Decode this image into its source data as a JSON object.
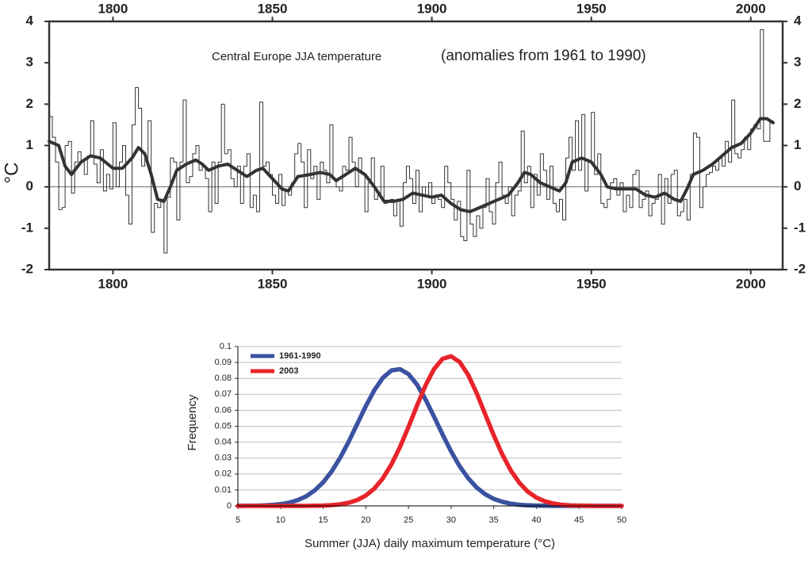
{
  "chart_data": [
    {
      "type": "line",
      "title": "Central Europe JJA temperature",
      "subtitle": "(anomalies from 1961 to 1990)",
      "y_label": "°C",
      "xlim": [
        1780,
        2010
      ],
      "xticks": [
        1800,
        1850,
        1900,
        1950,
        2000
      ],
      "ylim": [
        -2,
        4
      ],
      "yticks": [
        -2,
        -1,
        0,
        1,
        2,
        3,
        4
      ],
      "zero_line": true,
      "series": [
        {
          "color": "#333333",
          "step": true,
          "x": [
            1780,
            1781,
            1782,
            1783,
            1784,
            1785,
            1786,
            1787,
            1788,
            1789,
            1790,
            1791,
            1792,
            1793,
            1794,
            1795,
            1796,
            1797,
            1798,
            1799,
            1800,
            1801,
            1802,
            1803,
            1804,
            1805,
            1806,
            1807,
            1808,
            1809,
            1810,
            1811,
            1812,
            1813,
            1814,
            1815,
            1816,
            1817,
            1818,
            1819,
            1820,
            1821,
            1822,
            1823,
            1824,
            1825,
            1826,
            1827,
            1828,
            1829,
            1830,
            1831,
            1832,
            1833,
            1834,
            1835,
            1836,
            1837,
            1838,
            1839,
            1840,
            1841,
            1842,
            1843,
            1844,
            1845,
            1846,
            1847,
            1848,
            1849,
            1850,
            1851,
            1852,
            1853,
            1854,
            1855,
            1856,
            1857,
            1858,
            1859,
            1860,
            1861,
            1862,
            1863,
            1864,
            1865,
            1866,
            1867,
            1868,
            1869,
            1870,
            1871,
            1872,
            1873,
            1874,
            1875,
            1876,
            1877,
            1878,
            1879,
            1880,
            1881,
            1882,
            1883,
            1884,
            1885,
            1886,
            1887,
            1888,
            1889,
            1890,
            1891,
            1892,
            1893,
            1894,
            1895,
            1896,
            1897,
            1898,
            1899,
            1900,
            1901,
            1902,
            1903,
            1904,
            1905,
            1906,
            1907,
            1908,
            1909,
            1910,
            1911,
            1912,
            1913,
            1914,
            1915,
            1916,
            1917,
            1918,
            1919,
            1920,
            1921,
            1922,
            1923,
            1924,
            1925,
            1926,
            1927,
            1928,
            1929,
            1930,
            1931,
            1932,
            1933,
            1934,
            1935,
            1936,
            1937,
            1938,
            1939,
            1940,
            1941,
            1942,
            1943,
            1944,
            1945,
            1946,
            1947,
            1948,
            1949,
            1950,
            1951,
            1952,
            1953,
            1954,
            1955,
            1956,
            1957,
            1958,
            1959,
            1960,
            1961,
            1962,
            1963,
            1964,
            1965,
            1966,
            1967,
            1968,
            1969,
            1970,
            1971,
            1972,
            1973,
            1974,
            1975,
            1976,
            1977,
            1978,
            1979,
            1980,
            1981,
            1982,
            1983,
            1984,
            1985,
            1986,
            1987,
            1988,
            1989,
            1990,
            1991,
            1992,
            1993,
            1994,
            1995,
            1996,
            1997,
            1998,
            1999,
            2000,
            2001,
            2002,
            2003,
            2004,
            2005,
            2006
          ],
          "values": [
            1.7,
            1.2,
            0.6,
            -0.55,
            -0.5,
            1.0,
            1.1,
            -0.15,
            0.6,
            0.85,
            0.6,
            0.3,
            0.75,
            1.6,
            0.55,
            0.1,
            0.9,
            -0.1,
            0.3,
            -0.05,
            1.55,
            0.0,
            0.6,
            1.0,
            -0.2,
            -0.9,
            1.5,
            2.4,
            1.9,
            0.5,
            0.7,
            1.6,
            -1.1,
            -0.4,
            -0.5,
            -0.3,
            -1.6,
            -0.25,
            0.7,
            0.6,
            -0.8,
            0.6,
            2.1,
            0.1,
            0.25,
            0.8,
            1.0,
            0.4,
            0.5,
            0.2,
            -0.6,
            0.6,
            -0.4,
            0.6,
            2.0,
            0.8,
            0.9,
            0.2,
            0.0,
            0.5,
            -0.4,
            0.5,
            0.8,
            -0.5,
            -0.2,
            -0.6,
            2.05,
            0.5,
            0.6,
            0.3,
            -0.2,
            -0.4,
            0.3,
            -0.45,
            -0.1,
            -0.2,
            0.1,
            0.8,
            1.05,
            0.6,
            -0.5,
            0.9,
            0.2,
            0.5,
            -0.3,
            0.6,
            0.4,
            0.1,
            1.5,
            0.2,
            0.0,
            -0.1,
            0.5,
            0.4,
            1.2,
            0.6,
            0.0,
            0.7,
            0.3,
            -0.6,
            0.1,
            0.7,
            -0.3,
            -0.2,
            0.5,
            -0.4,
            -0.35,
            -0.3,
            -0.7,
            -0.3,
            -0.95,
            0.1,
            0.5,
            0.2,
            -0.4,
            0.4,
            -0.6,
            0.0,
            -0.2,
            0.1,
            -0.4,
            -0.2,
            -0.3,
            -0.5,
            0.5,
            0.1,
            -0.3,
            -0.8,
            -0.35,
            -1.2,
            -1.3,
            0.4,
            -0.9,
            -1.2,
            -0.7,
            -1.0,
            -0.5,
            0.2,
            -0.6,
            -0.9,
            0.1,
            0.6,
            -0.2,
            -0.4,
            0.0,
            -0.7,
            -0.2,
            -0.1,
            1.35,
            0.1,
            0.5,
            -0.5,
            0.3,
            -0.2,
            0.8,
            0.4,
            -0.3,
            0.5,
            -0.4,
            -0.6,
            -0.3,
            -0.8,
            0.7,
            1.2,
            0.4,
            1.6,
            0.4,
            1.75,
            -0.1,
            0.6,
            1.8,
            0.3,
            0.8,
            -0.4,
            -0.5,
            -0.3,
            0.1,
            0.2,
            -0.2,
            0.1,
            -0.6,
            -0.2,
            -0.5,
            0.3,
            0.4,
            -0.5,
            -0.3,
            -0.1,
            -0.7,
            -0.4,
            -0.3,
            0.3,
            -0.9,
            0.2,
            -0.4,
            0.3,
            0.4,
            -0.7,
            -0.6,
            -0.3,
            -0.8,
            0.3,
            1.3,
            1.2,
            -0.5,
            0.0,
            0.3,
            0.35,
            0.5,
            0.4,
            0.7,
            0.5,
            1.1,
            0.6,
            2.1,
            0.8,
            0.7,
            0.9,
            1.2,
            0.9,
            1.4,
            1.5,
            1.4,
            3.8,
            1.1,
            1.1,
            1.6
          ]
        },
        {
          "color": "#333333",
          "x": [
            1780,
            1783,
            1785,
            1787,
            1790,
            1793,
            1796,
            1800,
            1803,
            1806,
            1808,
            1810,
            1812,
            1814,
            1816,
            1818,
            1820,
            1823,
            1826,
            1828,
            1830,
            1833,
            1836,
            1839,
            1842,
            1845,
            1847,
            1850,
            1853,
            1855,
            1858,
            1862,
            1865,
            1868,
            1870,
            1873,
            1876,
            1879,
            1882,
            1885,
            1888,
            1891,
            1894,
            1897,
            1900,
            1903,
            1906,
            1909,
            1912,
            1915,
            1918,
            1921,
            1924,
            1927,
            1929,
            1931,
            1934,
            1937,
            1940,
            1942,
            1944,
            1947,
            1950,
            1953,
            1955,
            1958,
            1961,
            1964,
            1967,
            1970,
            1973,
            1976,
            1978,
            1980,
            1982,
            1985,
            1988,
            1991,
            1994,
            1997,
            2000,
            2003,
            2005,
            2007
          ],
          "values": [
            1.1,
            1.0,
            0.5,
            0.3,
            0.6,
            0.75,
            0.7,
            0.45,
            0.45,
            0.7,
            0.95,
            0.8,
            0.3,
            -0.3,
            -0.35,
            0.0,
            0.4,
            0.55,
            0.65,
            0.55,
            0.4,
            0.5,
            0.55,
            0.4,
            0.25,
            0.4,
            0.45,
            0.2,
            -0.05,
            -0.1,
            0.25,
            0.3,
            0.35,
            0.3,
            0.15,
            0.3,
            0.45,
            0.3,
            0.0,
            -0.35,
            -0.35,
            -0.3,
            -0.15,
            -0.2,
            -0.25,
            -0.2,
            -0.4,
            -0.55,
            -0.6,
            -0.5,
            -0.4,
            -0.3,
            -0.2,
            0.1,
            0.35,
            0.3,
            0.1,
            0.0,
            -0.1,
            0.1,
            0.6,
            0.7,
            0.6,
            0.3,
            0.0,
            -0.05,
            -0.05,
            -0.05,
            -0.2,
            -0.25,
            -0.15,
            -0.3,
            -0.35,
            -0.05,
            0.3,
            0.4,
            0.55,
            0.75,
            0.95,
            1.05,
            1.3,
            1.65,
            1.65,
            1.55
          ]
        }
      ]
    },
    {
      "type": "line",
      "x_label": "Summer (JJA) daily maximum temperature (°C)",
      "y_label": "Frequency",
      "xlim": [
        5,
        50
      ],
      "xticks": [
        5,
        10,
        15,
        20,
        25,
        30,
        35,
        40,
        45,
        50
      ],
      "ylim": [
        0,
        0.1
      ],
      "yticks": [
        0,
        0.01,
        0.02,
        0.03,
        0.04,
        0.05,
        0.06,
        0.07,
        0.08,
        0.09,
        0.1
      ],
      "grid": true,
      "legend": "upper left",
      "x": [
        5,
        6,
        7,
        8,
        9,
        10,
        11,
        12,
        13,
        14,
        15,
        16,
        17,
        18,
        19,
        20,
        21,
        22,
        23,
        24,
        25,
        26,
        27,
        28,
        29,
        30,
        31,
        32,
        33,
        34,
        35,
        36,
        37,
        38,
        39,
        40,
        41,
        42,
        43,
        44,
        45,
        46,
        47,
        48,
        49,
        50
      ],
      "series": [
        {
          "name": "1961-1990",
          "color": "#3a52a0",
          "values": [
            0,
            0.0001,
            0.0001,
            0.0003,
            0.0006,
            0.0011,
            0.002,
            0.0036,
            0.006,
            0.0097,
            0.0148,
            0.0217,
            0.0303,
            0.0404,
            0.0515,
            0.0626,
            0.0726,
            0.0804,
            0.085,
            0.0858,
            0.0827,
            0.0761,
            0.0668,
            0.056,
            0.0448,
            0.0342,
            0.0249,
            0.0174,
            0.0115,
            0.0073,
            0.0044,
            0.0026,
            0.0014,
            0.0007,
            0.0004,
            0.0002,
            0.0001,
            0,
            0,
            0,
            0,
            0,
            0,
            0,
            0,
            0
          ]
        },
        {
          "name": "2003",
          "color": "#e8242b",
          "values": [
            0,
            0,
            0,
            0,
            0,
            0,
            0,
            0,
            0,
            0.0001,
            0.0002,
            0.0005,
            0.001,
            0.002,
            0.0037,
            0.0065,
            0.0109,
            0.0173,
            0.026,
            0.0369,
            0.0495,
            0.0629,
            0.0756,
            0.0859,
            0.0923,
            0.0939,
            0.0903,
            0.0822,
            0.0707,
            0.0575,
            0.0443,
            0.0323,
            0.0222,
            0.0145,
            0.0089,
            0.0052,
            0.0029,
            0.0015,
            0.0007,
            0.0003,
            0.0002,
            0.0001,
            0,
            0,
            0,
            0
          ]
        }
      ]
    }
  ]
}
